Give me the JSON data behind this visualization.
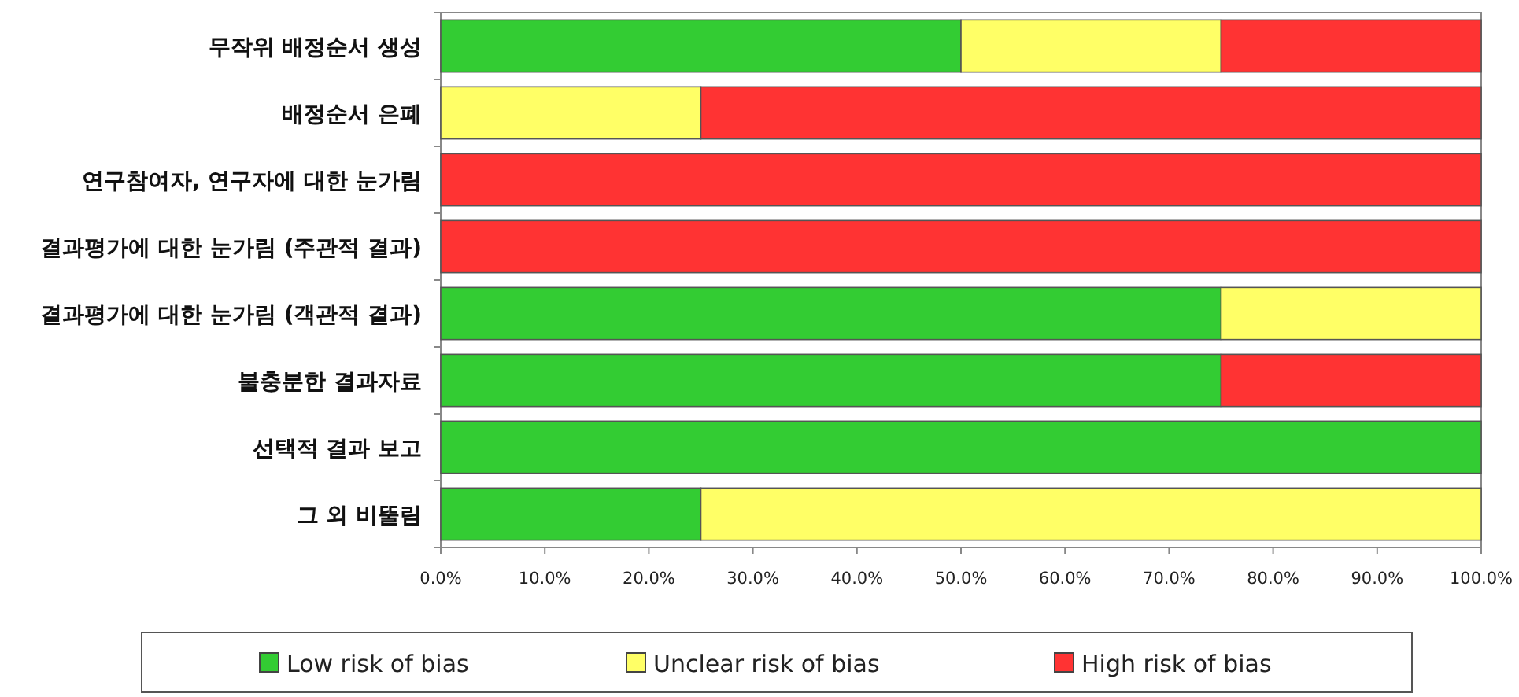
{
  "chart_data": {
    "type": "bar",
    "orientation": "horizontal",
    "stacked": true,
    "legend": "bottom",
    "categories": [
      "무작위 배정순서 생성",
      "배정순서 은폐",
      "연구참여자, 연구자에 대한 눈가림",
      "결과평가에 대한 눈가림 (주관적 결과)",
      "결과평가에 대한 눈가림 (객관적 결과)",
      "불충분한 결과자료",
      "선택적 결과 보고",
      "그 외 비뚤림"
    ],
    "series": [
      {
        "name": "Low risk of bias",
        "color": "#33cc33",
        "values": [
          50,
          0,
          0,
          0,
          75,
          75,
          100,
          25
        ]
      },
      {
        "name": "Unclear risk of bias",
        "color": "#ffff66",
        "values": [
          25,
          25,
          0,
          0,
          25,
          0,
          0,
          75
        ]
      },
      {
        "name": "High risk of bias",
        "color": "#ff3333",
        "values": [
          25,
          75,
          100,
          100,
          0,
          25,
          0,
          0
        ]
      }
    ],
    "xlim": [
      0,
      100
    ],
    "xticks": [
      {
        "value": 0,
        "label": "0.0%"
      },
      {
        "value": 10,
        "label": "10.0%"
      },
      {
        "value": 20,
        "label": "20.0%"
      },
      {
        "value": 30,
        "label": "30.0%"
      },
      {
        "value": 40,
        "label": "40.0%"
      },
      {
        "value": 50,
        "label": "50.0%"
      },
      {
        "value": 60,
        "label": "60.0%"
      },
      {
        "value": 70,
        "label": "70.0%"
      },
      {
        "value": 80,
        "label": "80.0%"
      },
      {
        "value": 90,
        "label": "90.0%"
      },
      {
        "value": 100,
        "label": "100.0%"
      }
    ]
  }
}
